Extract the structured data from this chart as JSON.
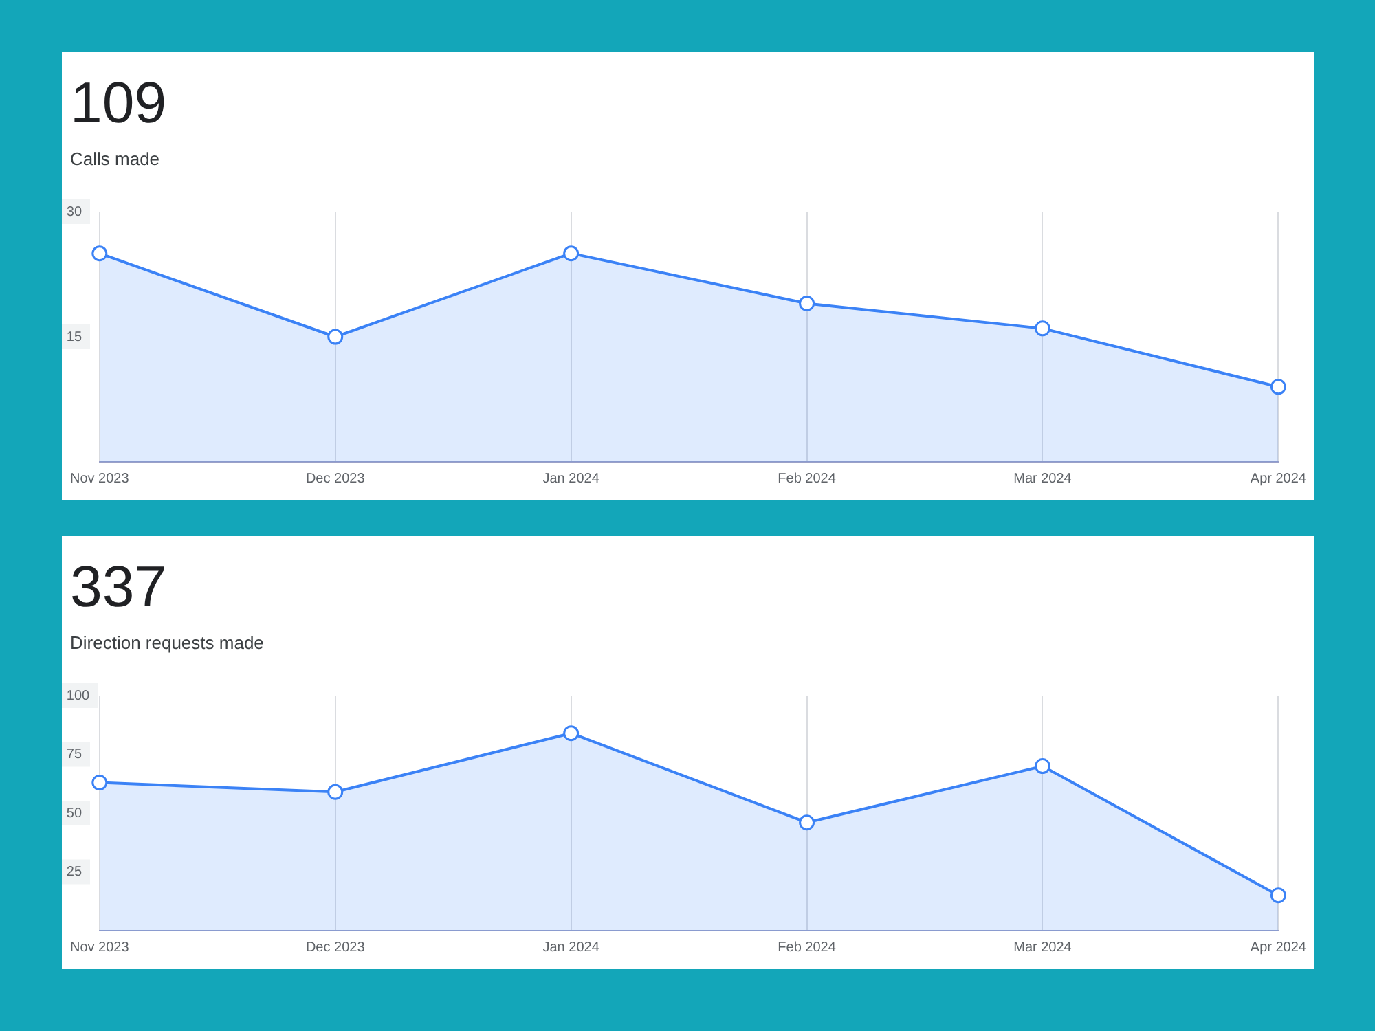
{
  "chart_data": [
    {
      "type": "area",
      "title": "109",
      "subtitle": "Calls made",
      "categories": [
        "Nov 2023",
        "Dec 2023",
        "Jan 2024",
        "Feb 2024",
        "Mar 2024",
        "Apr 2024"
      ],
      "series": [
        {
          "color": "#3b82f6",
          "values": [
            25,
            15,
            25,
            19,
            16,
            9
          ]
        }
      ],
      "ylim": [
        0,
        30
      ],
      "yticks": [
        15,
        30
      ],
      "grid": "x",
      "marker": "circle"
    },
    {
      "type": "area",
      "title": "337",
      "subtitle": "Direction requests made",
      "categories": [
        "Nov 2023",
        "Dec 2023",
        "Jan 2024",
        "Feb 2024",
        "Mar 2024",
        "Apr 2024"
      ],
      "series": [
        {
          "color": "#3b82f6",
          "values": [
            63,
            59,
            84,
            46,
            70,
            15
          ]
        }
      ],
      "ylim": [
        0,
        100
      ],
      "yticks": [
        25,
        50,
        75,
        100
      ],
      "grid": "x",
      "marker": "circle"
    }
  ]
}
